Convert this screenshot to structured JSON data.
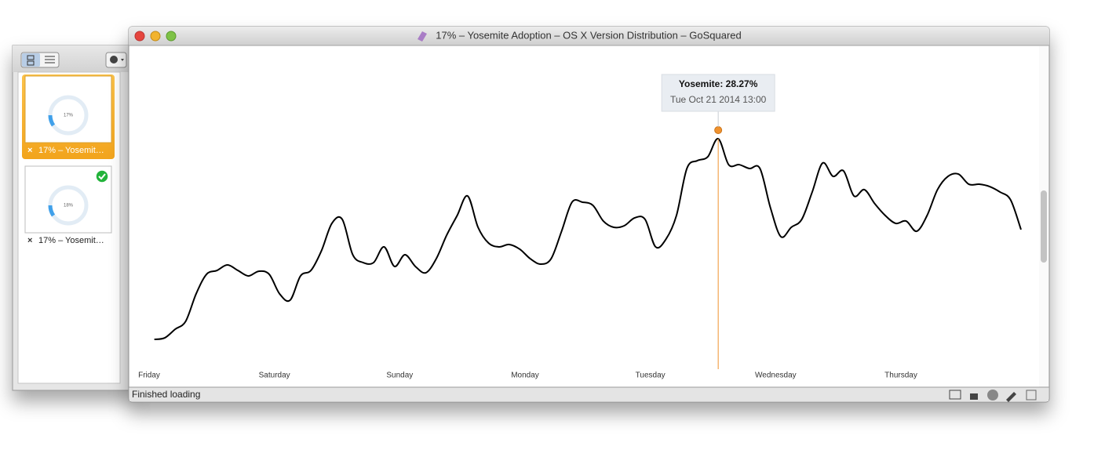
{
  "window": {
    "title": "17% – Yosemite Adoption – OS X Version Distribution – GoSquared",
    "status": "Finished loading"
  },
  "sidebar": {
    "tabs": [
      {
        "label": "17% – Yosemit…",
        "thumbnail_text": "17%"
      },
      {
        "label": "17% – Yosemit…",
        "thumbnail_text": "18%"
      }
    ]
  },
  "chart_data": {
    "type": "line",
    "color": "#000000",
    "x": [
      1,
      3,
      5,
      7,
      9,
      11,
      13,
      15,
      17,
      19,
      21,
      23,
      25,
      27,
      29,
      31,
      33,
      35,
      37,
      39,
      41,
      43,
      45,
      47,
      49,
      51,
      53,
      55,
      57,
      59,
      61,
      63,
      65,
      67,
      69,
      71,
      73,
      75,
      77,
      79,
      81,
      83,
      85,
      87,
      89,
      91,
      93,
      95,
      97,
      99,
      101,
      103,
      105,
      107,
      109,
      111,
      113,
      115,
      117,
      119,
      121,
      123,
      125,
      127,
      129,
      131,
      133,
      135,
      137,
      139,
      141,
      143,
      145,
      147,
      149,
      151,
      153,
      155,
      157,
      159,
      161,
      163,
      165,
      167
    ],
    "values": [
      11.16,
      11.29,
      12.03,
      12.7,
      15.04,
      16.71,
      17.04,
      17.51,
      17.04,
      16.57,
      16.97,
      16.71,
      15.04,
      14.5,
      16.57,
      17.04,
      18.71,
      21.05,
      21.39,
      18.38,
      17.71,
      17.71,
      19.05,
      17.38,
      18.38,
      17.38,
      16.84,
      18.04,
      20.05,
      21.72,
      23.39,
      20.72,
      19.38,
      19.05,
      19.25,
      18.85,
      18.04,
      17.58,
      18.04,
      20.38,
      22.86,
      22.86,
      22.59,
      21.25,
      20.72,
      20.85,
      21.52,
      21.39,
      19.05,
      19.71,
      21.72,
      25.73,
      26.4,
      26.73,
      28.27,
      26.06,
      26.06,
      25.73,
      25.73,
      22.39,
      19.92,
      20.72,
      21.39,
      23.72,
      26.2,
      25.06,
      25.53,
      23.39,
      23.93,
      22.72,
      21.72,
      21.05,
      21.25,
      20.38,
      21.72,
      23.93,
      25.06,
      25.26,
      24.39,
      24.39,
      24.19,
      23.72,
      23.06,
      20.52
    ],
    "xticks": [
      {
        "value": 0,
        "label": "Friday"
      },
      {
        "value": 24,
        "label": "Saturday"
      },
      {
        "value": 48,
        "label": "Sunday"
      },
      {
        "value": 72,
        "label": "Monday"
      },
      {
        "value": 96,
        "label": "Tuesday"
      },
      {
        "value": 120,
        "label": "Wednesday"
      },
      {
        "value": 144,
        "label": "Thursday"
      }
    ],
    "tooltip": {
      "label": "Yosemite: 28.27%",
      "date": "Tue Oct 21 2014 13:00"
    },
    "highlight_color": "#f0922e"
  }
}
